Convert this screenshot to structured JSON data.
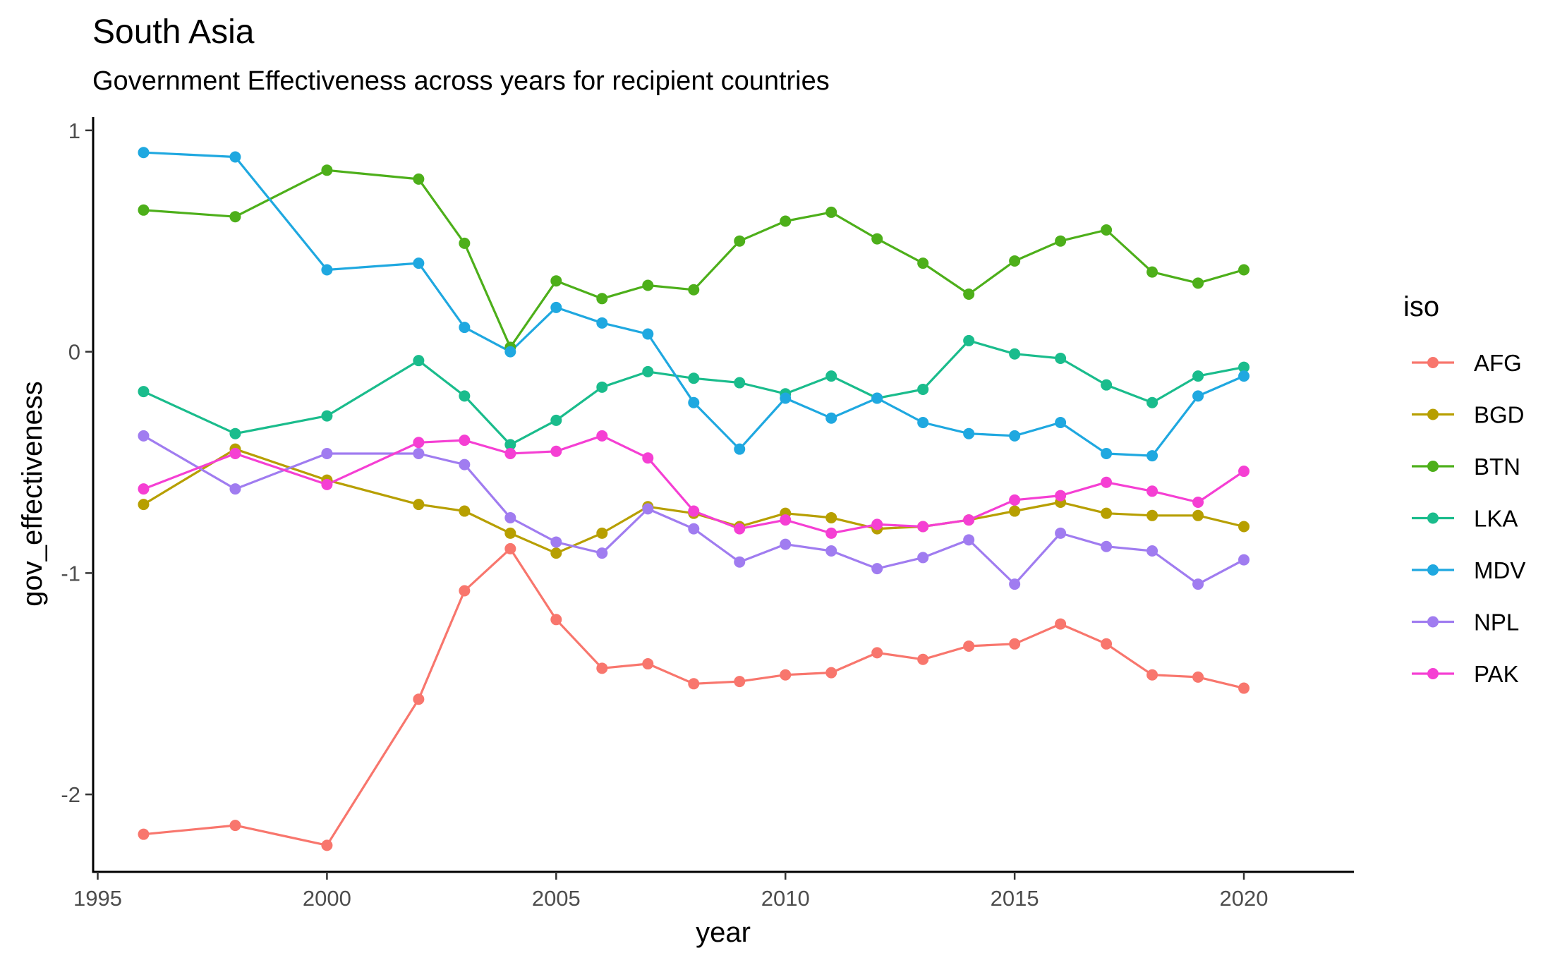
{
  "chart_data": {
    "type": "line",
    "title": "South Asia",
    "subtitle": "Government Effectiveness across years for recipient countries",
    "xlabel": "year",
    "ylabel": "gov_effectiveness",
    "xlim": [
      1994.9,
      2022.4
    ],
    "ylim": [
      -2.35,
      1.06
    ],
    "x_ticks": [
      1995,
      2000,
      2005,
      2010,
      2015,
      2020
    ],
    "y_ticks": [
      -2,
      -1,
      0,
      1
    ],
    "grid": false,
    "legend_title": "iso",
    "legend_position": "right",
    "x": [
      1996,
      1998,
      2000,
      2002,
      2003,
      2004,
      2005,
      2006,
      2007,
      2008,
      2009,
      2010,
      2011,
      2012,
      2013,
      2014,
      2015,
      2016,
      2017,
      2018,
      2019,
      2020
    ],
    "series": [
      {
        "name": "AFG",
        "color": "#F8766D",
        "values": [
          -2.18,
          -2.14,
          -2.23,
          -1.57,
          -1.08,
          -0.89,
          -1.21,
          -1.43,
          -1.41,
          -1.5,
          -1.49,
          -1.46,
          -1.45,
          -1.36,
          -1.39,
          -1.33,
          -1.32,
          -1.23,
          -1.32,
          -1.46,
          -1.47,
          -1.52
        ]
      },
      {
        "name": "BGD",
        "color": "#B79F00",
        "values": [
          -0.69,
          -0.44,
          -0.58,
          -0.69,
          -0.72,
          -0.82,
          -0.91,
          -0.82,
          -0.7,
          -0.73,
          -0.79,
          -0.73,
          -0.75,
          -0.8,
          -0.79,
          -0.76,
          -0.72,
          -0.68,
          -0.73,
          -0.74,
          -0.74,
          -0.79
        ]
      },
      {
        "name": "BTN",
        "color": "#4DAF1A",
        "values": [
          0.64,
          0.61,
          0.82,
          0.78,
          0.49,
          0.02,
          0.32,
          0.24,
          0.3,
          0.28,
          0.5,
          0.59,
          0.63,
          0.51,
          0.4,
          0.26,
          0.41,
          0.5,
          0.55,
          0.36,
          0.31,
          0.37
        ]
      },
      {
        "name": "LKA",
        "color": "#1ABC8C",
        "values": [
          -0.18,
          -0.37,
          -0.29,
          -0.04,
          -0.2,
          -0.42,
          -0.31,
          -0.16,
          -0.09,
          -0.12,
          -0.14,
          -0.19,
          -0.11,
          -0.21,
          -0.17,
          0.05,
          -0.01,
          -0.03,
          -0.15,
          -0.23,
          -0.11,
          -0.07
        ]
      },
      {
        "name": "MDV",
        "color": "#1FA8E0",
        "values": [
          0.9,
          0.88,
          0.37,
          0.4,
          0.11,
          0.0,
          0.2,
          0.13,
          0.08,
          -0.23,
          -0.44,
          -0.21,
          -0.3,
          -0.21,
          -0.32,
          -0.37,
          -0.38,
          -0.32,
          -0.46,
          -0.47,
          -0.2,
          -0.11
        ]
      },
      {
        "name": "NPL",
        "color": "#A07CF0",
        "values": [
          -0.38,
          -0.62,
          -0.46,
          -0.46,
          -0.51,
          -0.75,
          -0.86,
          -0.91,
          -0.71,
          -0.8,
          -0.95,
          -0.87,
          -0.9,
          -0.98,
          -0.93,
          -0.85,
          -1.05,
          -0.82,
          -0.88,
          -0.9,
          -1.05,
          -0.94
        ]
      },
      {
        "name": "PAK",
        "color": "#F53FD3",
        "values": [
          -0.62,
          -0.46,
          -0.6,
          -0.41,
          -0.4,
          -0.46,
          -0.45,
          -0.38,
          -0.48,
          -0.72,
          -0.8,
          -0.76,
          -0.82,
          -0.78,
          -0.79,
          -0.76,
          -0.67,
          -0.65,
          -0.59,
          -0.63,
          -0.68,
          -0.54
        ]
      }
    ]
  }
}
